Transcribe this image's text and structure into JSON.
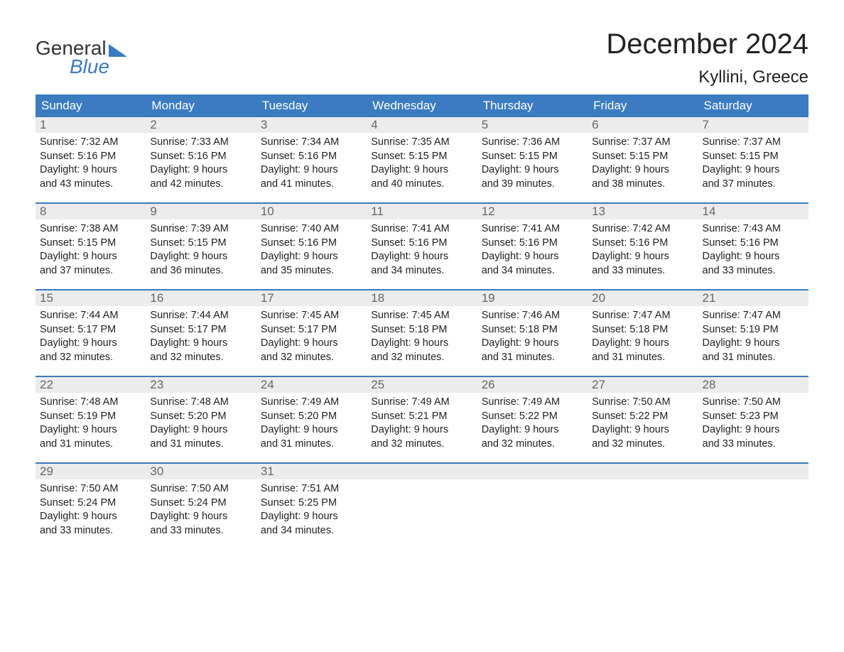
{
  "logo": {
    "text1": "General",
    "text2": "Blue"
  },
  "title": "December 2024",
  "location": "Kyllini, Greece",
  "colors": {
    "header_bg": "#3b7bbf",
    "header_text": "#ffffff",
    "daynum_bg": "#ececec",
    "daynum_text": "#666666",
    "body_text": "#222222",
    "week_border": "#3b7bbf",
    "page_bg": "#ffffff",
    "logo_gray": "#333333",
    "logo_blue": "#3b7bbf"
  },
  "typography": {
    "title_fontsize": 40,
    "location_fontsize": 24,
    "dayheader_fontsize": 17,
    "daynum_fontsize": 17,
    "body_fontsize": 14.5,
    "logo_fontsize": 28
  },
  "day_headers": [
    "Sunday",
    "Monday",
    "Tuesday",
    "Wednesday",
    "Thursday",
    "Friday",
    "Saturday"
  ],
  "labels": {
    "sunrise_prefix": "Sunrise: ",
    "sunset_prefix": "Sunset: ",
    "daylight_prefix": "Daylight: ",
    "hours_word": " hours",
    "and_word": "and ",
    "minutes_word": " minutes."
  },
  "weeks": [
    [
      {
        "day": 1,
        "sunrise": "7:32 AM",
        "sunset": "5:16 PM",
        "dl_h": 9,
        "dl_m": 43
      },
      {
        "day": 2,
        "sunrise": "7:33 AM",
        "sunset": "5:16 PM",
        "dl_h": 9,
        "dl_m": 42
      },
      {
        "day": 3,
        "sunrise": "7:34 AM",
        "sunset": "5:16 PM",
        "dl_h": 9,
        "dl_m": 41
      },
      {
        "day": 4,
        "sunrise": "7:35 AM",
        "sunset": "5:15 PM",
        "dl_h": 9,
        "dl_m": 40
      },
      {
        "day": 5,
        "sunrise": "7:36 AM",
        "sunset": "5:15 PM",
        "dl_h": 9,
        "dl_m": 39
      },
      {
        "day": 6,
        "sunrise": "7:37 AM",
        "sunset": "5:15 PM",
        "dl_h": 9,
        "dl_m": 38
      },
      {
        "day": 7,
        "sunrise": "7:37 AM",
        "sunset": "5:15 PM",
        "dl_h": 9,
        "dl_m": 37
      }
    ],
    [
      {
        "day": 8,
        "sunrise": "7:38 AM",
        "sunset": "5:15 PM",
        "dl_h": 9,
        "dl_m": 37
      },
      {
        "day": 9,
        "sunrise": "7:39 AM",
        "sunset": "5:15 PM",
        "dl_h": 9,
        "dl_m": 36
      },
      {
        "day": 10,
        "sunrise": "7:40 AM",
        "sunset": "5:16 PM",
        "dl_h": 9,
        "dl_m": 35
      },
      {
        "day": 11,
        "sunrise": "7:41 AM",
        "sunset": "5:16 PM",
        "dl_h": 9,
        "dl_m": 34
      },
      {
        "day": 12,
        "sunrise": "7:41 AM",
        "sunset": "5:16 PM",
        "dl_h": 9,
        "dl_m": 34
      },
      {
        "day": 13,
        "sunrise": "7:42 AM",
        "sunset": "5:16 PM",
        "dl_h": 9,
        "dl_m": 33
      },
      {
        "day": 14,
        "sunrise": "7:43 AM",
        "sunset": "5:16 PM",
        "dl_h": 9,
        "dl_m": 33
      }
    ],
    [
      {
        "day": 15,
        "sunrise": "7:44 AM",
        "sunset": "5:17 PM",
        "dl_h": 9,
        "dl_m": 32
      },
      {
        "day": 16,
        "sunrise": "7:44 AM",
        "sunset": "5:17 PM",
        "dl_h": 9,
        "dl_m": 32
      },
      {
        "day": 17,
        "sunrise": "7:45 AM",
        "sunset": "5:17 PM",
        "dl_h": 9,
        "dl_m": 32
      },
      {
        "day": 18,
        "sunrise": "7:45 AM",
        "sunset": "5:18 PM",
        "dl_h": 9,
        "dl_m": 32
      },
      {
        "day": 19,
        "sunrise": "7:46 AM",
        "sunset": "5:18 PM",
        "dl_h": 9,
        "dl_m": 31
      },
      {
        "day": 20,
        "sunrise": "7:47 AM",
        "sunset": "5:18 PM",
        "dl_h": 9,
        "dl_m": 31
      },
      {
        "day": 21,
        "sunrise": "7:47 AM",
        "sunset": "5:19 PM",
        "dl_h": 9,
        "dl_m": 31
      }
    ],
    [
      {
        "day": 22,
        "sunrise": "7:48 AM",
        "sunset": "5:19 PM",
        "dl_h": 9,
        "dl_m": 31
      },
      {
        "day": 23,
        "sunrise": "7:48 AM",
        "sunset": "5:20 PM",
        "dl_h": 9,
        "dl_m": 31
      },
      {
        "day": 24,
        "sunrise": "7:49 AM",
        "sunset": "5:20 PM",
        "dl_h": 9,
        "dl_m": 31
      },
      {
        "day": 25,
        "sunrise": "7:49 AM",
        "sunset": "5:21 PM",
        "dl_h": 9,
        "dl_m": 32
      },
      {
        "day": 26,
        "sunrise": "7:49 AM",
        "sunset": "5:22 PM",
        "dl_h": 9,
        "dl_m": 32
      },
      {
        "day": 27,
        "sunrise": "7:50 AM",
        "sunset": "5:22 PM",
        "dl_h": 9,
        "dl_m": 32
      },
      {
        "day": 28,
        "sunrise": "7:50 AM",
        "sunset": "5:23 PM",
        "dl_h": 9,
        "dl_m": 33
      }
    ],
    [
      {
        "day": 29,
        "sunrise": "7:50 AM",
        "sunset": "5:24 PM",
        "dl_h": 9,
        "dl_m": 33
      },
      {
        "day": 30,
        "sunrise": "7:50 AM",
        "sunset": "5:24 PM",
        "dl_h": 9,
        "dl_m": 33
      },
      {
        "day": 31,
        "sunrise": "7:51 AM",
        "sunset": "5:25 PM",
        "dl_h": 9,
        "dl_m": 34
      },
      null,
      null,
      null,
      null
    ]
  ]
}
